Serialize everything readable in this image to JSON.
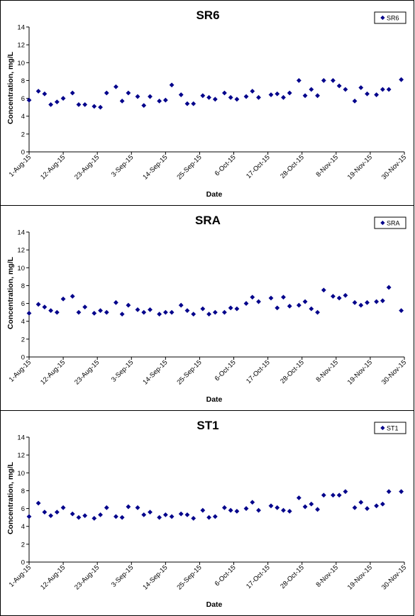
{
  "chart_data": [
    {
      "type": "scatter",
      "title": "SR6",
      "xlabel": "Date",
      "ylabel": "Concentration, mg/L",
      "ylim": [
        0,
        14
      ],
      "yticks": [
        0,
        2,
        4,
        6,
        8,
        10,
        12,
        14
      ],
      "xlim": [
        "2015-08-01",
        "2015-11-30"
      ],
      "xticks": [
        "1-Aug-15",
        "12-Aug-15",
        "23-Aug-15",
        "3-Sep-15",
        "14-Sep-15",
        "25-Sep-15",
        "6-Oct-15",
        "17-Oct-15",
        "28-Oct-15",
        "8-Nov-15",
        "19-Nov-15",
        "30-Nov-15"
      ],
      "grid": false,
      "legend_position": "top-right",
      "marker_color": "#00008B",
      "series": [
        {
          "name": "SR6",
          "points": [
            [
              "2015-08-01",
              5.8
            ],
            [
              "2015-08-04",
              6.8
            ],
            [
              "2015-08-06",
              6.5
            ],
            [
              "2015-08-08",
              5.3
            ],
            [
              "2015-08-10",
              5.6
            ],
            [
              "2015-08-12",
              6.0
            ],
            [
              "2015-08-15",
              6.6
            ],
            [
              "2015-08-17",
              5.3
            ],
            [
              "2015-08-19",
              5.3
            ],
            [
              "2015-08-22",
              5.1
            ],
            [
              "2015-08-24",
              5.0
            ],
            [
              "2015-08-26",
              6.6
            ],
            [
              "2015-08-29",
              7.3
            ],
            [
              "2015-08-31",
              5.7
            ],
            [
              "2015-09-02",
              6.6
            ],
            [
              "2015-09-05",
              6.2
            ],
            [
              "2015-09-07",
              5.2
            ],
            [
              "2015-09-09",
              6.2
            ],
            [
              "2015-09-12",
              5.7
            ],
            [
              "2015-09-14",
              5.8
            ],
            [
              "2015-09-16",
              7.5
            ],
            [
              "2015-09-19",
              6.4
            ],
            [
              "2015-09-21",
              5.4
            ],
            [
              "2015-09-23",
              5.4
            ],
            [
              "2015-09-26",
              6.3
            ],
            [
              "2015-09-28",
              6.1
            ],
            [
              "2015-09-30",
              5.9
            ],
            [
              "2015-10-03",
              6.6
            ],
            [
              "2015-10-05",
              6.1
            ],
            [
              "2015-10-07",
              5.9
            ],
            [
              "2015-10-10",
              6.2
            ],
            [
              "2015-10-12",
              6.8
            ],
            [
              "2015-10-14",
              6.1
            ],
            [
              "2015-10-18",
              6.4
            ],
            [
              "2015-10-20",
              6.5
            ],
            [
              "2015-10-22",
              6.1
            ],
            [
              "2015-10-24",
              6.6
            ],
            [
              "2015-10-27",
              8.0
            ],
            [
              "2015-10-29",
              6.3
            ],
            [
              "2015-10-31",
              7.0
            ],
            [
              "2015-11-02",
              6.3
            ],
            [
              "2015-11-04",
              8.0
            ],
            [
              "2015-11-07",
              8.0
            ],
            [
              "2015-11-09",
              7.4
            ],
            [
              "2015-11-11",
              7.0
            ],
            [
              "2015-11-14",
              5.7
            ],
            [
              "2015-11-16",
              7.2
            ],
            [
              "2015-11-18",
              6.5
            ],
            [
              "2015-11-21",
              6.4
            ],
            [
              "2015-11-23",
              7.0
            ],
            [
              "2015-11-25",
              7.0
            ],
            [
              "2015-11-29",
              8.1
            ]
          ]
        }
      ]
    },
    {
      "type": "scatter",
      "title": "SRA",
      "xlabel": "Date",
      "ylabel": "Concentration, mg/L",
      "ylim": [
        0,
        14
      ],
      "yticks": [
        0,
        2,
        4,
        6,
        8,
        10,
        12,
        14
      ],
      "xlim": [
        "2015-08-01",
        "2015-11-30"
      ],
      "xticks": [
        "1-Aug-15",
        "12-Aug-15",
        "23-Aug-15",
        "3-Sep-15",
        "14-Sep-15",
        "25-Sep-15",
        "6-Oct-15",
        "17-Oct-15",
        "28-Oct-15",
        "8-Nov-15",
        "19-Nov-15",
        "30-Nov-15"
      ],
      "grid": false,
      "legend_position": "top-right",
      "marker_color": "#00008B",
      "series": [
        {
          "name": "SRA",
          "points": [
            [
              "2015-08-01",
              4.9
            ],
            [
              "2015-08-04",
              5.9
            ],
            [
              "2015-08-06",
              5.6
            ],
            [
              "2015-08-08",
              5.2
            ],
            [
              "2015-08-10",
              5.0
            ],
            [
              "2015-08-12",
              6.5
            ],
            [
              "2015-08-15",
              6.8
            ],
            [
              "2015-08-17",
              5.0
            ],
            [
              "2015-08-19",
              5.6
            ],
            [
              "2015-08-22",
              4.9
            ],
            [
              "2015-08-24",
              5.2
            ],
            [
              "2015-08-26",
              5.0
            ],
            [
              "2015-08-29",
              6.1
            ],
            [
              "2015-08-31",
              4.8
            ],
            [
              "2015-09-02",
              5.8
            ],
            [
              "2015-09-05",
              5.3
            ],
            [
              "2015-09-07",
              5.0
            ],
            [
              "2015-09-09",
              5.3
            ],
            [
              "2015-09-12",
              4.8
            ],
            [
              "2015-09-14",
              5.0
            ],
            [
              "2015-09-16",
              5.0
            ],
            [
              "2015-09-19",
              5.8
            ],
            [
              "2015-09-21",
              5.2
            ],
            [
              "2015-09-23",
              4.8
            ],
            [
              "2015-09-26",
              5.4
            ],
            [
              "2015-09-28",
              4.8
            ],
            [
              "2015-09-30",
              5.0
            ],
            [
              "2015-10-03",
              5.0
            ],
            [
              "2015-10-05",
              5.5
            ],
            [
              "2015-10-07",
              5.4
            ],
            [
              "2015-10-10",
              6.0
            ],
            [
              "2015-10-12",
              6.7
            ],
            [
              "2015-10-14",
              6.2
            ],
            [
              "2015-10-18",
              6.6
            ],
            [
              "2015-10-20",
              5.5
            ],
            [
              "2015-10-22",
              6.7
            ],
            [
              "2015-10-24",
              5.7
            ],
            [
              "2015-10-27",
              5.8
            ],
            [
              "2015-10-29",
              6.2
            ],
            [
              "2015-10-31",
              5.4
            ],
            [
              "2015-11-02",
              5.0
            ],
            [
              "2015-11-04",
              7.5
            ],
            [
              "2015-11-07",
              6.8
            ],
            [
              "2015-11-09",
              6.6
            ],
            [
              "2015-11-11",
              6.9
            ],
            [
              "2015-11-14",
              6.1
            ],
            [
              "2015-11-16",
              5.8
            ],
            [
              "2015-11-18",
              6.1
            ],
            [
              "2015-11-21",
              6.2
            ],
            [
              "2015-11-23",
              6.3
            ],
            [
              "2015-11-25",
              7.8
            ],
            [
              "2015-11-29",
              5.2
            ]
          ]
        }
      ]
    },
    {
      "type": "scatter",
      "title": "ST1",
      "xlabel": "Date",
      "ylabel": "Concentration, mg/L",
      "ylim": [
        0,
        14
      ],
      "yticks": [
        0,
        2,
        4,
        6,
        8,
        10,
        12,
        14
      ],
      "xlim": [
        "2015-08-01",
        "2015-11-30"
      ],
      "xticks": [
        "1-Aug-15",
        "12-Aug-15",
        "23-Aug-15",
        "3-Sep-15",
        "14-Sep-15",
        "25-Sep-15",
        "6-Oct-15",
        "17-Oct-15",
        "28-Oct-15",
        "8-Nov-15",
        "19-Nov-15",
        "30-Nov-15"
      ],
      "grid": false,
      "legend_position": "top-right",
      "marker_color": "#00008B",
      "series": [
        {
          "name": "ST1",
          "points": [
            [
              "2015-08-01",
              5.1
            ],
            [
              "2015-08-04",
              6.6
            ],
            [
              "2015-08-06",
              5.6
            ],
            [
              "2015-08-08",
              5.2
            ],
            [
              "2015-08-10",
              5.6
            ],
            [
              "2015-08-12",
              6.1
            ],
            [
              "2015-08-15",
              5.4
            ],
            [
              "2015-08-17",
              5.0
            ],
            [
              "2015-08-19",
              5.2
            ],
            [
              "2015-08-22",
              4.9
            ],
            [
              "2015-08-24",
              5.3
            ],
            [
              "2015-08-26",
              6.1
            ],
            [
              "2015-08-29",
              5.1
            ],
            [
              "2015-08-31",
              5.0
            ],
            [
              "2015-09-02",
              6.2
            ],
            [
              "2015-09-05",
              6.1
            ],
            [
              "2015-09-07",
              5.3
            ],
            [
              "2015-09-09",
              5.6
            ],
            [
              "2015-09-12",
              5.0
            ],
            [
              "2015-09-14",
              5.3
            ],
            [
              "2015-09-16",
              5.1
            ],
            [
              "2015-09-19",
              5.4
            ],
            [
              "2015-09-21",
              5.3
            ],
            [
              "2015-09-23",
              4.9
            ],
            [
              "2015-09-26",
              5.8
            ],
            [
              "2015-09-28",
              5.0
            ],
            [
              "2015-09-30",
              5.1
            ],
            [
              "2015-10-03",
              6.1
            ],
            [
              "2015-10-05",
              5.8
            ],
            [
              "2015-10-07",
              5.7
            ],
            [
              "2015-10-10",
              6.0
            ],
            [
              "2015-10-12",
              6.7
            ],
            [
              "2015-10-14",
              5.8
            ],
            [
              "2015-10-18",
              6.3
            ],
            [
              "2015-10-20",
              6.1
            ],
            [
              "2015-10-22",
              5.8
            ],
            [
              "2015-10-24",
              5.7
            ],
            [
              "2015-10-27",
              7.2
            ],
            [
              "2015-10-29",
              6.2
            ],
            [
              "2015-10-31",
              6.5
            ],
            [
              "2015-11-02",
              5.9
            ],
            [
              "2015-11-04",
              7.5
            ],
            [
              "2015-11-07",
              7.5
            ],
            [
              "2015-11-09",
              7.5
            ],
            [
              "2015-11-11",
              7.9
            ],
            [
              "2015-11-14",
              6.1
            ],
            [
              "2015-11-16",
              6.7
            ],
            [
              "2015-11-18",
              6.0
            ],
            [
              "2015-11-21",
              6.3
            ],
            [
              "2015-11-23",
              6.5
            ],
            [
              "2015-11-25",
              7.9
            ],
            [
              "2015-11-29",
              7.9
            ]
          ]
        }
      ]
    }
  ]
}
